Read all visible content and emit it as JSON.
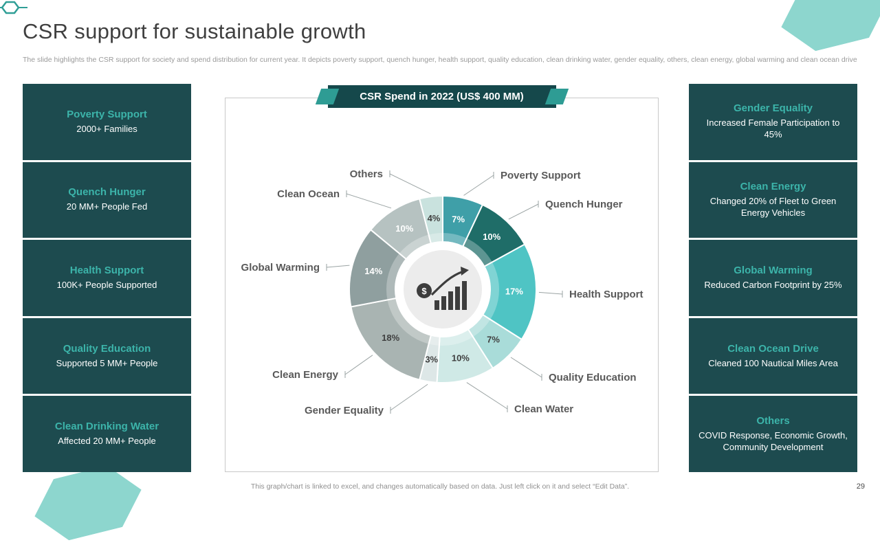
{
  "slide": {
    "title": "CSR support for sustainable growth",
    "subtitle": "The slide highlights the CSR support for society and spend distribution for current year. It depicts poverty support, quench hunger, health support, quality education, clean drinking water, gender equality, others, clean energy, global warming and clean ocean drive",
    "footer_note": "This graph/chart is linked to excel, and changes automatically based on data. Just left click on it and select “Edit Data”.",
    "page_number": "29"
  },
  "left_cards": [
    {
      "title": "Poverty Support",
      "text": "2000+ Families"
    },
    {
      "title": "Quench Hunger",
      "text": "20 MM+ People Fed"
    },
    {
      "title": "Health Support",
      "text": "100K+ People Supported"
    },
    {
      "title": "Quality Education",
      "text": "Supported 5 MM+ People"
    },
    {
      "title": "Clean Drinking Water",
      "text": "Affected 20 MM+ People"
    }
  ],
  "right_cards": [
    {
      "title": "Gender Equality",
      "text": "Increased Female Participation to 45%"
    },
    {
      "title": "Clean Energy",
      "text": "Changed 20% of Fleet to Green Energy Vehicles"
    },
    {
      "title": "Global Warming",
      "text": "Reduced Carbon Footprint by 25%"
    },
    {
      "title": "Clean Ocean Drive",
      "text": "Cleaned 100 Nautical Miles Area"
    },
    {
      "title": "Others",
      "text": "COVID Response, Economic Growth, Community Development"
    }
  ],
  "chart_data": {
    "type": "pie",
    "donut": true,
    "title": "CSR Spend in 2022 (US$ 400 MM)",
    "unit": "%",
    "legend_position": "callout-labels",
    "slices": [
      {
        "label": "Poverty Support",
        "value": 7,
        "color": "#3f9fa8",
        "label_color": "#ffffff"
      },
      {
        "label": "Quench Hunger",
        "value": 10,
        "color": "#1f6d68",
        "label_color": "#ffffff"
      },
      {
        "label": "Health Support",
        "value": 17,
        "color": "#4fc4c4",
        "label_color": "#ffffff"
      },
      {
        "label": "Quality Education",
        "value": 7,
        "color": "#a9dcd9",
        "label_color": "#3f3f3f"
      },
      {
        "label": "Clean Water",
        "value": 10,
        "color": "#cfe9e6",
        "label_color": "#3f3f3f"
      },
      {
        "label": "Gender Equality",
        "value": 3,
        "color": "#dde7e7",
        "label_color": "#3f3f3f"
      },
      {
        "label": "Clean Energy",
        "value": 18,
        "color": "#a9b4b2",
        "label_color": "#3f3f3f"
      },
      {
        "label": "Global Warming",
        "value": 14,
        "color": "#8f9f9f",
        "label_color": "#ffffff"
      },
      {
        "label": "Clean Ocean",
        "value": 10,
        "color": "#b6c2c1",
        "label_color": "#ffffff"
      },
      {
        "label": "Others",
        "value": 4,
        "color": "#c9e2de",
        "label_color": "#3f3f3f"
      }
    ]
  },
  "colors": {
    "card_bg": "#1d4b4f",
    "accent_teal": "#3cb4aa",
    "banner_bg": "#15484b",
    "hexagon": "#8dd6ce",
    "icon_dark": "#3d3d3d"
  }
}
